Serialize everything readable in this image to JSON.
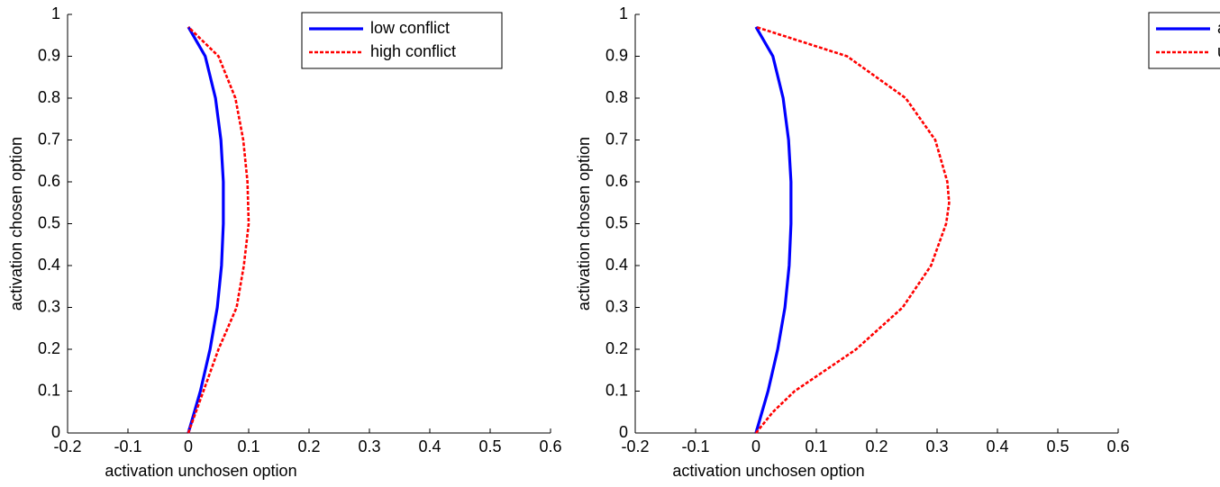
{
  "chart_data": [
    {
      "type": "line",
      "xlabel": "activation unchosen option",
      "ylabel": "activation chosen option",
      "xlim": [
        -0.2,
        0.6
      ],
      "ylim": [
        0,
        1
      ],
      "xticks": [
        -0.2,
        -0.1,
        0,
        0.1,
        0.2,
        0.3,
        0.4,
        0.5,
        0.6
      ],
      "yticks": [
        0,
        0.1,
        0.2,
        0.3,
        0.4,
        0.5,
        0.6,
        0.7,
        0.8,
        0.9,
        1
      ],
      "legend": "upper right",
      "series": [
        {
          "name": "low conflict",
          "color": "#0000ff",
          "style": "solid",
          "x": [
            0,
            0.02,
            0.036,
            0.048,
            0.055,
            0.058,
            0.058,
            0.054,
            0.045,
            0.028,
            0
          ],
          "values": [
            0,
            0.1,
            0.2,
            0.3,
            0.4,
            0.5,
            0.6,
            0.7,
            0.8,
            0.9,
            0.97
          ]
        },
        {
          "name": "high conflict",
          "color": "#ff0000",
          "style": "dashed",
          "x": [
            0,
            0.025,
            0.05,
            0.08,
            0.092,
            0.1,
            0.098,
            0.091,
            0.078,
            0.05,
            0
          ],
          "values": [
            0,
            0.1,
            0.2,
            0.3,
            0.4,
            0.5,
            0.6,
            0.7,
            0.8,
            0.9,
            0.97
          ]
        }
      ]
    },
    {
      "type": "line",
      "xlabel": "activation unchosen option",
      "ylabel": "activation chosen option",
      "xlim": [
        -0.2,
        0.6
      ],
      "ylim": [
        0,
        1
      ],
      "xticks": [
        -0.2,
        -0.1,
        0,
        0.1,
        0.2,
        0.3,
        0.4,
        0.5,
        0.6
      ],
      "yticks": [
        0,
        0.1,
        0.2,
        0.3,
        0.4,
        0.5,
        0.6,
        0.7,
        0.8,
        0.9,
        1
      ],
      "legend": "upper right",
      "series": [
        {
          "name": "attractive-chosen",
          "color": "#0000ff",
          "style": "solid",
          "x": [
            0,
            0.02,
            0.036,
            0.048,
            0.055,
            0.058,
            0.058,
            0.054,
            0.045,
            0.028,
            0
          ],
          "values": [
            0,
            0.1,
            0.2,
            0.3,
            0.4,
            0.5,
            0.6,
            0.7,
            0.8,
            0.9,
            0.97
          ]
        },
        {
          "name": "unattractive-chosen",
          "color": "#ff0000",
          "style": "dashed",
          "x": [
            0,
            0.028,
            0.064,
            0.166,
            0.243,
            0.29,
            0.315,
            0.32,
            0.317,
            0.297,
            0.248,
            0.151,
            0
          ],
          "values": [
            0,
            0.05,
            0.1,
            0.2,
            0.3,
            0.4,
            0.5,
            0.55,
            0.6,
            0.7,
            0.8,
            0.9,
            0.97
          ]
        }
      ]
    }
  ]
}
